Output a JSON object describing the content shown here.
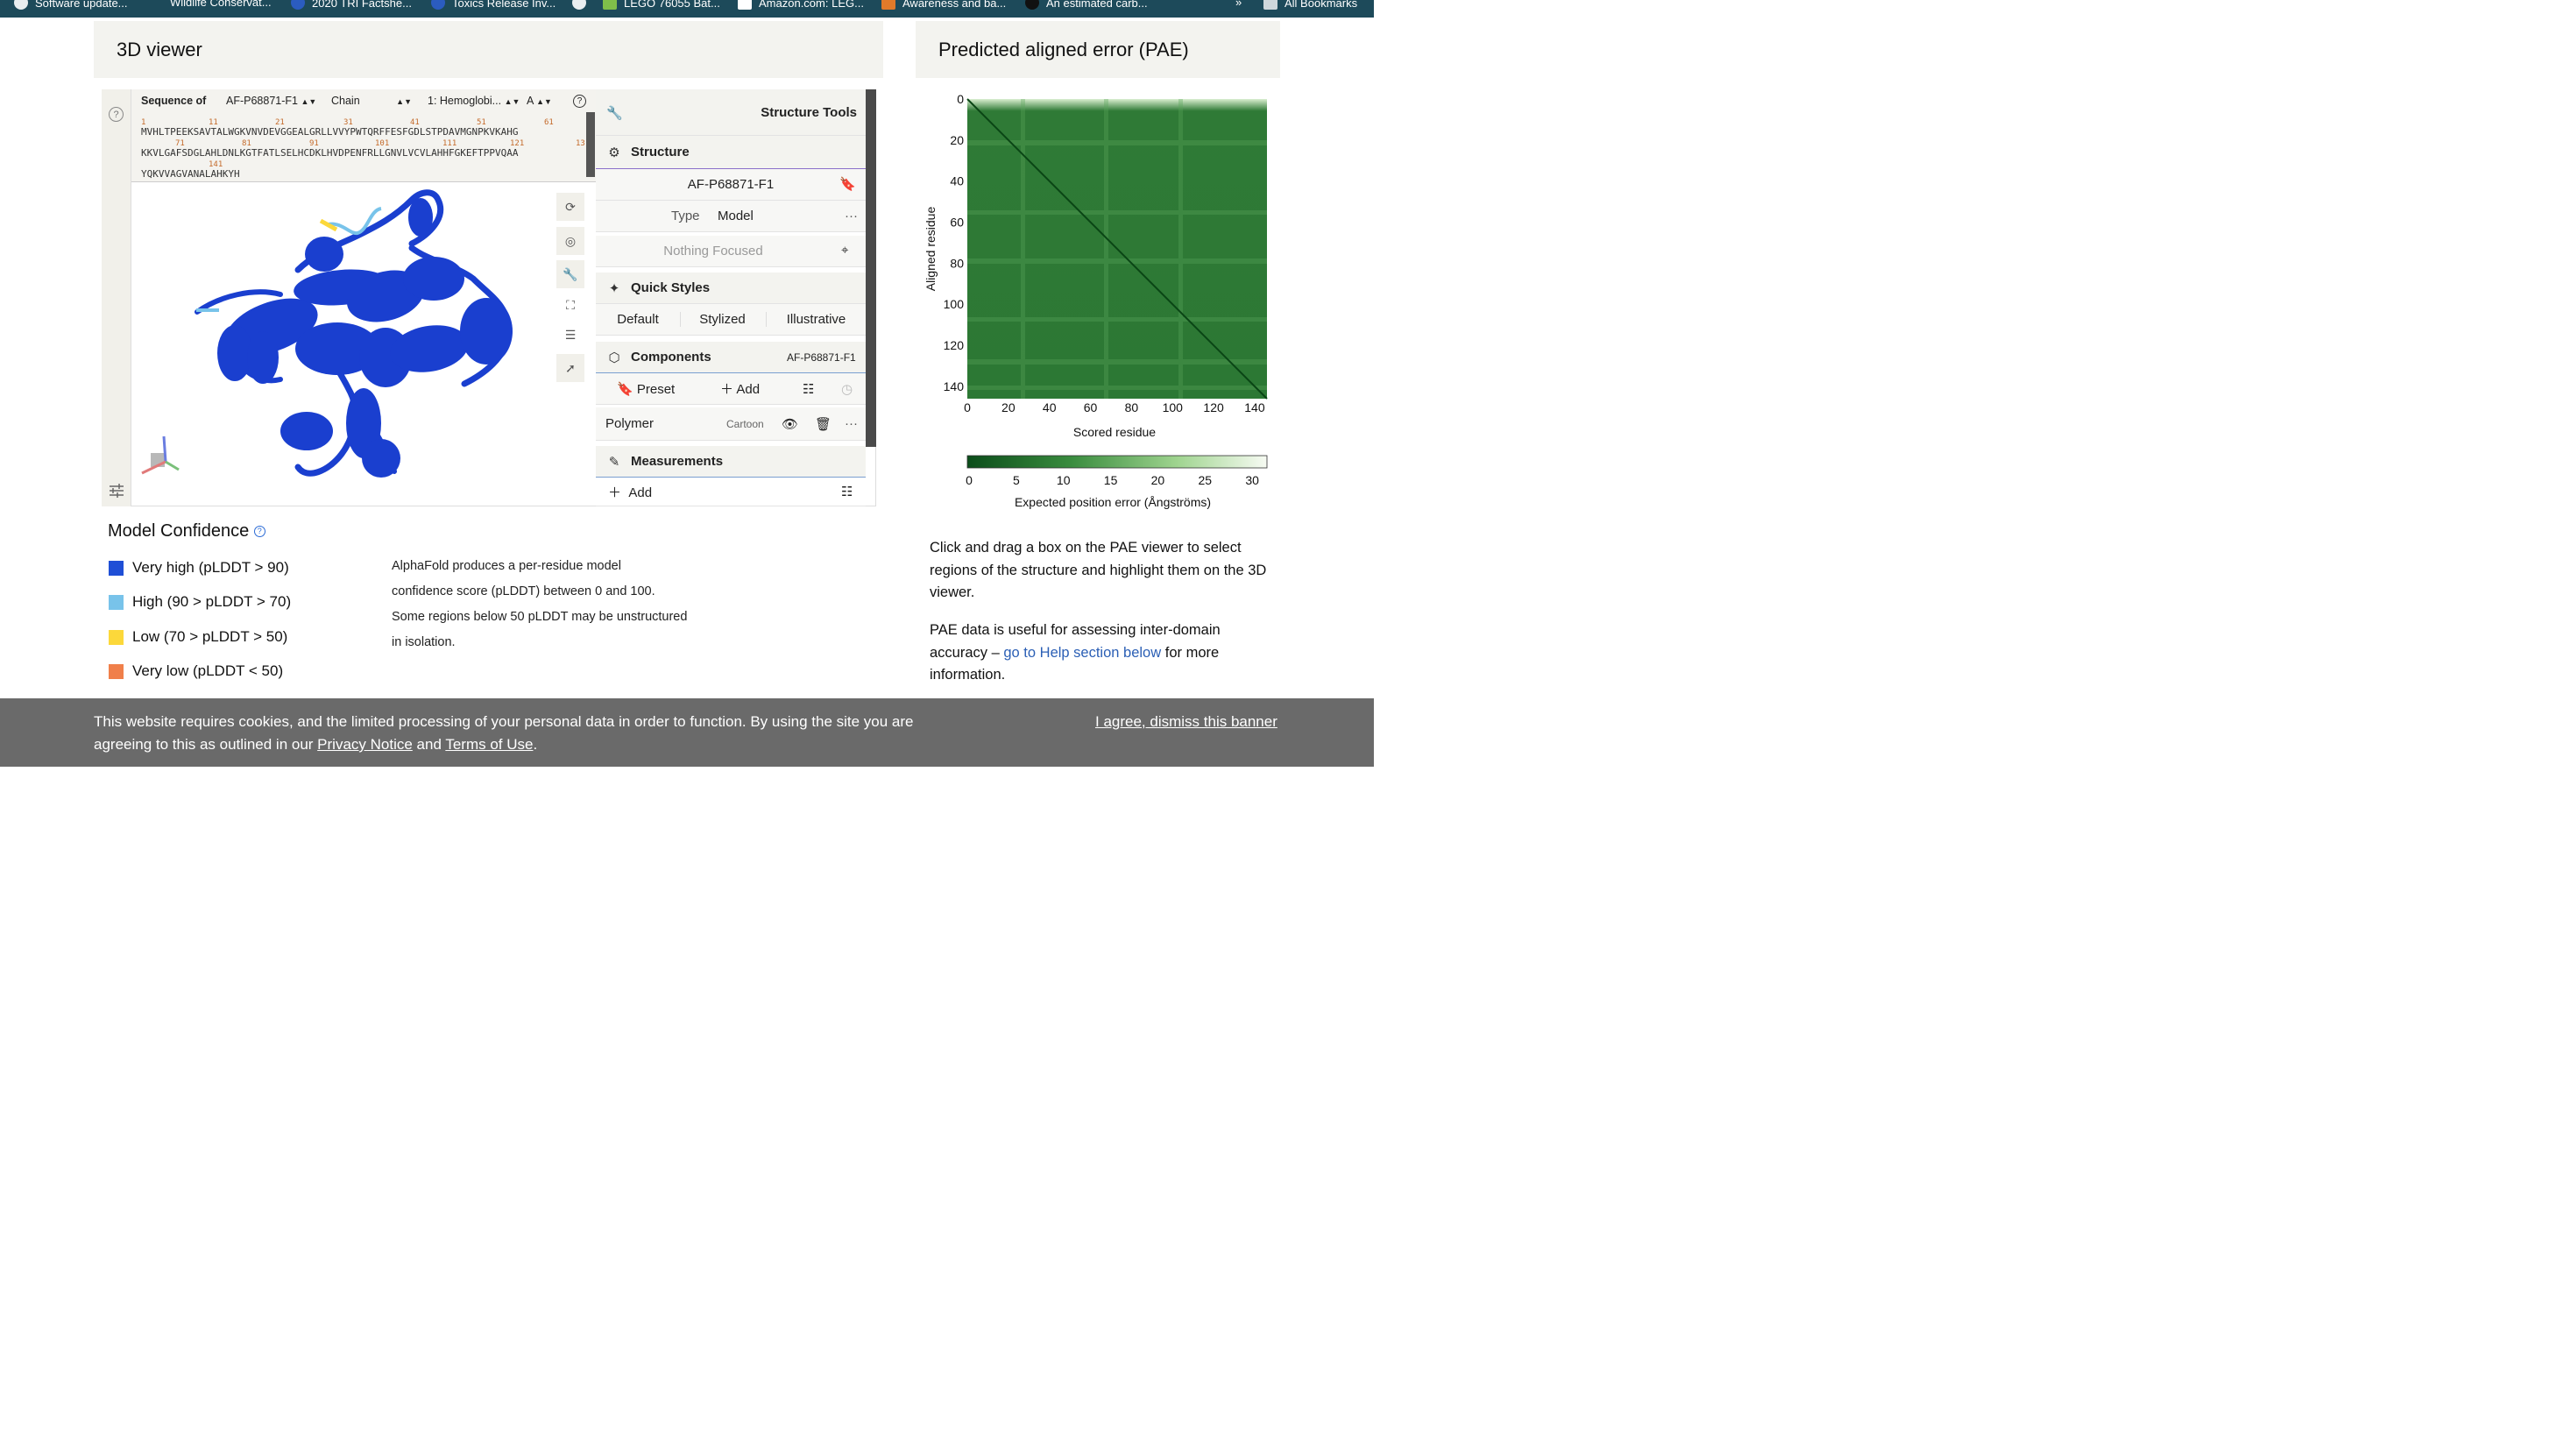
{
  "bookmarks": [
    {
      "label": "Software update..."
    },
    {
      "label": "Wildlife Conservat..."
    },
    {
      "label": "2020 TRI Factshe..."
    },
    {
      "label": "Toxics Release Inv..."
    },
    {
      "label": "LEGO 76055 Bat..."
    },
    {
      "label": "Amazon.com: LEG..."
    },
    {
      "label": "Awareness and ba..."
    },
    {
      "label": "An estimated carb..."
    }
  ],
  "bookmarks_overflow": "»",
  "all_bookmarks": "All Bookmarks",
  "viewer": {
    "title": "3D viewer",
    "sequence_label": "Sequence of",
    "entry": "AF-P68871-F1",
    "chain_label": "Chain",
    "entity": "1: Hemoglobi...",
    "chain": "A",
    "seq_lines": [
      "MVHLTPEEKSAVTALWGKVNVDEVGGEALGRLLVVYPWTQRFFESFGDLSTPDAVMGNPKVKAHG",
      "KKVLGAFSDGLAHLDNLKGTFATLSELHCDKLHVDPENFRLLGNVLVCVLAHHFGKEFTPPVQAA",
      "YQKVVAGVANALAHKYH"
    ],
    "seq_nums_1": [
      "1",
      "11",
      "21",
      "31",
      "41",
      "51",
      "61"
    ],
    "seq_nums_2": [
      "71",
      "81",
      "91",
      "101",
      "111",
      "121",
      "13"
    ],
    "seq_nums_3": [
      "141"
    ]
  },
  "tools": {
    "header": "Structure Tools",
    "structure": "Structure",
    "structure_name": "AF-P68871-F1",
    "type_label": "Type",
    "type_value": "Model",
    "focus": "Nothing Focused",
    "quick_styles": "Quick Styles",
    "styles": [
      "Default",
      "Stylized",
      "Illustrative"
    ],
    "components": "Components",
    "components_ref": "AF-P68871-F1",
    "preset": "Preset",
    "add": "Add",
    "polymer": "Polymer",
    "polymer_rep": "Cartoon",
    "measurements": "Measurements",
    "meas_add": "Add"
  },
  "confidence": {
    "title": "Model Confidence",
    "levels": [
      {
        "label": "Very high (pLDDT > 90)",
        "color": "#1f4fd6"
      },
      {
        "label": "High (90 > pLDDT > 70)",
        "color": "#78c3ea"
      },
      {
        "label": "Low (70 > pLDDT > 50)",
        "color": "#fcd83a"
      },
      {
        "label": "Very low (pLDDT < 50)",
        "color": "#f07f4a"
      }
    ],
    "description": [
      "AlphaFold produces a per-residue model",
      "confidence score (pLDDT) between 0 and 100.",
      "Some regions below 50 pLDDT may be unstructured",
      "in isolation."
    ]
  },
  "pae": {
    "title": "Predicted aligned error (PAE)",
    "ylabel": "Aligned residue",
    "xlabel": "Scored residue",
    "ticks": [
      "0",
      "20",
      "40",
      "60",
      "80",
      "100",
      "120",
      "140"
    ],
    "colorbar_ticks": [
      "0",
      "5",
      "10",
      "15",
      "20",
      "25",
      "30"
    ],
    "colorbar_label": "Expected position error (Ångströms)",
    "note1": "Click and drag a box on the PAE viewer to select regions of the structure and highlight them on the 3D viewer.",
    "note2_prefix": "PAE data is useful for assessing inter-domain accuracy – ",
    "note2_link": "go to Help section below",
    "note2_suffix": " for more information."
  },
  "cookie": {
    "text1": "This website requires cookies, and the limited processing of your personal data in order to function. By using the site you are",
    "text2_prefix": "agreeing to this as outlined in our ",
    "privacy": "Privacy Notice",
    "and": " and ",
    "terms": "Terms of Use",
    "period": ".",
    "dismiss": "I agree, dismiss this banner"
  }
}
